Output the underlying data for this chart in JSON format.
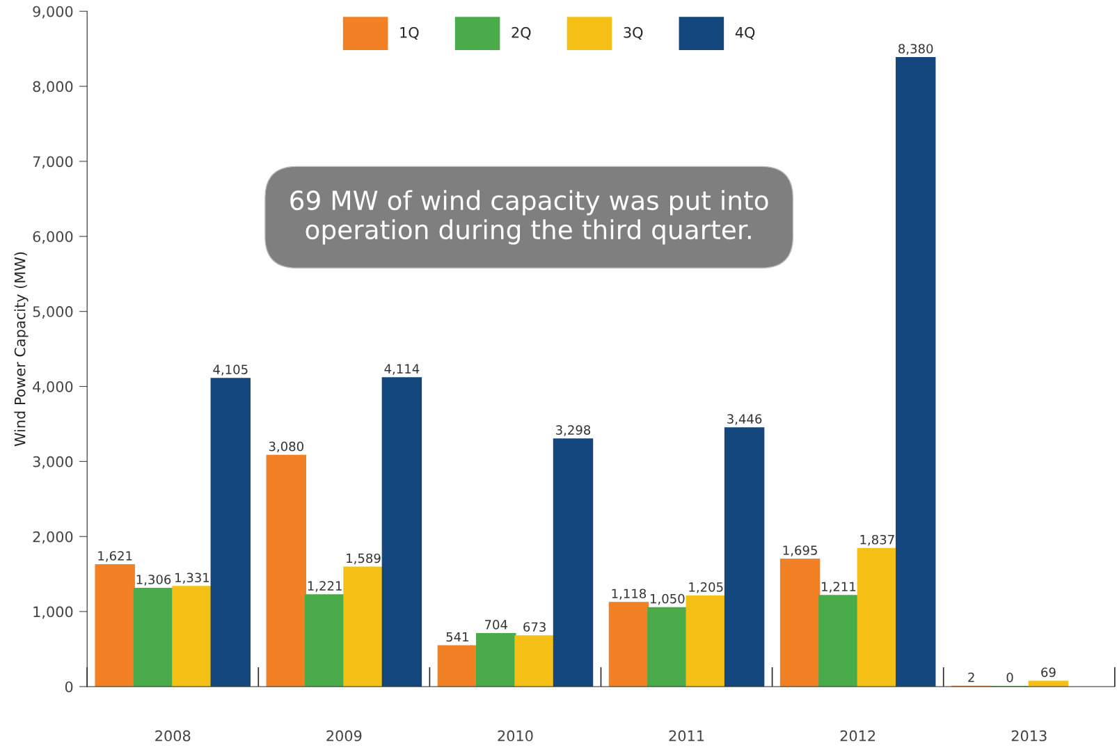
{
  "chart_data": {
    "type": "bar",
    "ylabel": "Wind Power Capacity (MW)",
    "categories": [
      "2008",
      "2009",
      "2010",
      "2011",
      "2012",
      "2013"
    ],
    "series": [
      {
        "name": "1Q",
        "color": "#f28024",
        "values": [
          1621,
          3080,
          541,
          1118,
          1695,
          2
        ],
        "value_labels": [
          "1,621",
          "3,080",
          "541",
          "1,118",
          "1,695",
          "2"
        ]
      },
      {
        "name": "2Q",
        "color": "#4aab4a",
        "values": [
          1306,
          1221,
          704,
          1050,
          1211,
          0
        ],
        "value_labels": [
          "1,306",
          "1,221",
          "704",
          "1,050",
          "1,211",
          "0"
        ]
      },
      {
        "name": "3Q",
        "color": "#f5c015",
        "values": [
          1331,
          1589,
          673,
          1205,
          1837,
          69
        ],
        "value_labels": [
          "1,331",
          "1,589",
          "673",
          "1,205",
          "1,837",
          "69"
        ]
      },
      {
        "name": "4Q",
        "color": "#13477d",
        "values": [
          4105,
          4114,
          3298,
          3446,
          8380,
          null
        ],
        "value_labels": [
          "4,105",
          "4,114",
          "3,298",
          "3,446",
          "8,380",
          null
        ]
      }
    ],
    "ylim": [
      0,
      9000
    ],
    "yticks": [
      {
        "value": 0,
        "label": "0"
      },
      {
        "value": 1000,
        "label": "1,000"
      },
      {
        "value": 2000,
        "label": "2,000"
      },
      {
        "value": 3000,
        "label": "3,000"
      },
      {
        "value": 4000,
        "label": "4,000"
      },
      {
        "value": 5000,
        "label": "5,000"
      },
      {
        "value": 6000,
        "label": "6,000"
      },
      {
        "value": 7000,
        "label": "7,000"
      },
      {
        "value": 8000,
        "label": "8,000"
      },
      {
        "value": 9000,
        "label": "9,000"
      }
    ],
    "grid": false,
    "legend": "top",
    "annotations": [
      "69 MW of wind capacity was put into operation during the third quarter."
    ]
  }
}
